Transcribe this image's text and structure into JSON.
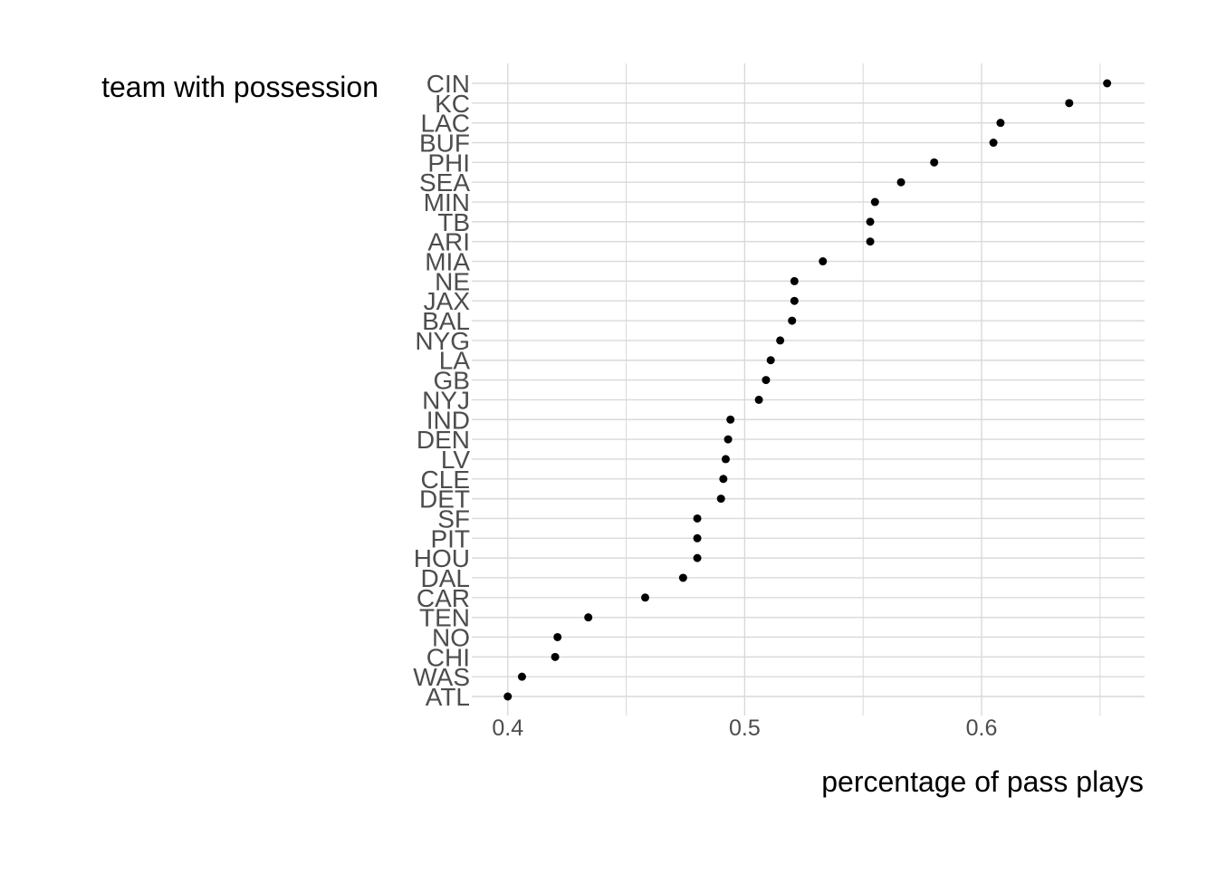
{
  "chart_data": {
    "type": "scatter",
    "title": "",
    "xlabel": "percentage of pass plays",
    "ylabel": "team with possession",
    "xlim": [
      0.3848,
      0.6688
    ],
    "x_ticks": [
      0.4,
      0.5,
      0.6
    ],
    "x_tick_labels": [
      "0.4",
      "0.5",
      "0.6"
    ],
    "grid": true,
    "legend": "none",
    "categories": [
      "CIN",
      "KC",
      "LAC",
      "BUF",
      "PHI",
      "SEA",
      "MIN",
      "TB",
      "ARI",
      "MIA",
      "NE",
      "JAX",
      "BAL",
      "NYG",
      "LA",
      "GB",
      "NYJ",
      "IND",
      "DEN",
      "LV",
      "CLE",
      "DET",
      "SF",
      "PIT",
      "HOU",
      "DAL",
      "CAR",
      "TEN",
      "NO",
      "CHI",
      "WAS",
      "ATL"
    ],
    "values": [
      0.653,
      0.637,
      0.608,
      0.605,
      0.58,
      0.566,
      0.555,
      0.553,
      0.553,
      0.533,
      0.521,
      0.521,
      0.52,
      0.515,
      0.511,
      0.509,
      0.506,
      0.494,
      0.493,
      0.492,
      0.491,
      0.49,
      0.48,
      0.48,
      0.48,
      0.474,
      0.458,
      0.434,
      0.421,
      0.42,
      0.406,
      0.4
    ],
    "colors": {
      "point": "#000000",
      "grid": "#d9d9d9",
      "tick_label": "#4d4d4d",
      "axis_title": "#000000"
    }
  }
}
